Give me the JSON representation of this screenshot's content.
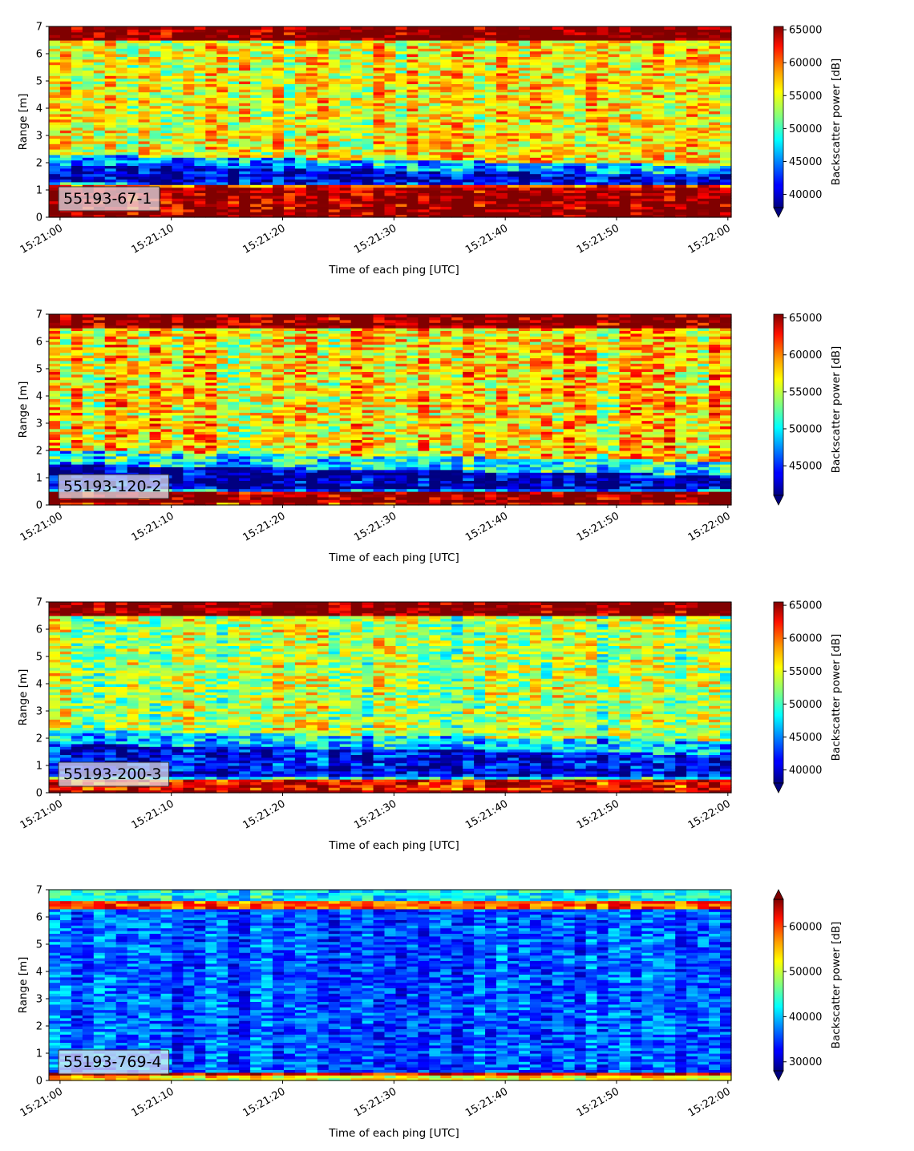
{
  "chart_data": [
    {
      "type": "heatmap",
      "label": "55193-67-1",
      "xlabel": "Time of each ping [UTC]",
      "ylabel": "Range [m]",
      "x_ticks": [
        "15:21:00",
        "15:21:10",
        "15:21:20",
        "15:21:30",
        "15:21:40",
        "15:21:50",
        "15:22:00"
      ],
      "xlim_seconds": [
        -1,
        60.3
      ],
      "ylim": [
        0,
        7
      ],
      "y_ticks": [
        0,
        1,
        2,
        3,
        4,
        5,
        6,
        7
      ],
      "colorbar": {
        "label": "Backscatter power [dB]",
        "range": [
          38000,
          65500
        ],
        "ticks": [
          40000,
          45000,
          50000,
          55000,
          60000,
          65000
        ],
        "extend": "min"
      },
      "layers": [
        {
          "y0": 0,
          "y1": 0.25,
          "value": 66000
        },
        {
          "y0": 0.25,
          "y1": 1.1,
          "value": 65000
        },
        {
          "y0": 1.1,
          "y1": 1.2,
          "value": 60000
        },
        {
          "y0": 1.2,
          "y1": 1.3,
          "value": 47000
        },
        {
          "y0": 1.3,
          "y1": 1.95,
          "value": 40500
        },
        {
          "y0": 1.95,
          "y1": 2.3,
          "value": 46000
        },
        {
          "y0": 2.3,
          "y1": 6.55,
          "value": 55000
        },
        {
          "y0": 6.55,
          "y1": 7,
          "value": 66000
        }
      ]
    },
    {
      "type": "heatmap",
      "label": "55193-120-2",
      "xlabel": "Time of each ping [UTC]",
      "ylabel": "Range [m]",
      "x_ticks": [
        "15:21:00",
        "15:21:10",
        "15:21:20",
        "15:21:30",
        "15:21:40",
        "15:21:50",
        "15:22:00"
      ],
      "xlim_seconds": [
        -1,
        60.3
      ],
      "ylim": [
        0,
        7
      ],
      "y_ticks": [
        0,
        1,
        2,
        3,
        4,
        5,
        6,
        7
      ],
      "colorbar": {
        "label": "Backscatter power [dB]",
        "range": [
          41000,
          65500
        ],
        "ticks": [
          45000,
          50000,
          55000,
          60000,
          65000
        ],
        "extend": "min"
      },
      "layers": [
        {
          "y0": 0,
          "y1": 0.1,
          "value": 63000
        },
        {
          "y0": 0.1,
          "y1": 0.45,
          "value": 66000
        },
        {
          "y0": 0.45,
          "y1": 0.6,
          "value": 48000
        },
        {
          "y0": 0.6,
          "y1": 1.5,
          "value": 42000
        },
        {
          "y0": 1.5,
          "y1": 2.0,
          "value": 50000
        },
        {
          "y0": 2.0,
          "y1": 6.55,
          "value": 57000
        },
        {
          "y0": 6.55,
          "y1": 7,
          "value": 66000
        }
      ]
    },
    {
      "type": "heatmap",
      "label": "55193-200-3",
      "xlabel": "Time of each ping [UTC]",
      "ylabel": "Range [m]",
      "x_ticks": [
        "15:21:00",
        "15:21:10",
        "15:21:20",
        "15:21:30",
        "15:21:40",
        "15:21:50",
        "15:22:00"
      ],
      "xlim_seconds": [
        -1,
        60.3
      ],
      "ylim": [
        0,
        7
      ],
      "y_ticks": [
        0,
        1,
        2,
        3,
        4,
        5,
        6,
        7
      ],
      "colorbar": {
        "label": "Backscatter power [dB]",
        "range": [
          38000,
          65500
        ],
        "ticks": [
          40000,
          45000,
          50000,
          55000,
          60000,
          65000
        ],
        "extend": "min"
      },
      "layers": [
        {
          "y0": 0,
          "y1": 0.15,
          "value": 66000
        },
        {
          "y0": 0.15,
          "y1": 0.45,
          "value": 62000
        },
        {
          "y0": 0.45,
          "y1": 0.6,
          "value": 48000
        },
        {
          "y0": 0.6,
          "y1": 1.8,
          "value": 41000
        },
        {
          "y0": 1.8,
          "y1": 2.3,
          "value": 47000
        },
        {
          "y0": 2.3,
          "y1": 6.55,
          "value": 53000
        },
        {
          "y0": 6.55,
          "y1": 7,
          "value": 66000
        }
      ]
    },
    {
      "type": "heatmap",
      "label": "55193-769-4",
      "xlabel": "Time of each ping [UTC]",
      "ylabel": "Range [m]",
      "x_ticks": [
        "15:21:00",
        "15:21:10",
        "15:21:20",
        "15:21:30",
        "15:21:40",
        "15:21:50",
        "15:22:00"
      ],
      "xlim_seconds": [
        -1,
        60.3
      ],
      "ylim": [
        0,
        7
      ],
      "y_ticks": [
        0,
        1,
        2,
        3,
        4,
        5,
        6,
        7
      ],
      "colorbar": {
        "label": "Backscatter power [dB]",
        "range": [
          28000,
          66000
        ],
        "ticks": [
          30000,
          40000,
          50000,
          60000
        ],
        "extend": "both"
      },
      "layers": [
        {
          "y0": 0,
          "y1": 0.2,
          "value": 52000
        },
        {
          "y0": 0.2,
          "y1": 0.35,
          "value": 62000
        },
        {
          "y0": 0.35,
          "y1": 6.3,
          "value": 36000
        },
        {
          "y0": 6.3,
          "y1": 6.6,
          "value": 58000
        },
        {
          "y0": 6.6,
          "y1": 7,
          "value": 42000
        }
      ]
    }
  ]
}
